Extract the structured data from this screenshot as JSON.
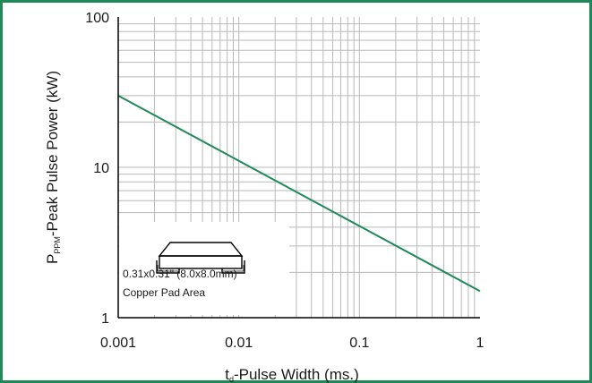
{
  "colors": {
    "frame": "#1e8a5a",
    "series": "#1e8a5a",
    "grid": "#b9b9b9",
    "axis": "#000000"
  },
  "chart_data": {
    "type": "line",
    "xscale": "log",
    "yscale": "log",
    "xlim": [
      0.001,
      1
    ],
    "ylim": [
      1,
      100
    ],
    "x_ticks": [
      "0.001",
      "0.01",
      "0.1",
      "1"
    ],
    "y_ticks": [
      "1",
      "10",
      "100"
    ],
    "grid": true,
    "xlabel": {
      "prefix": "t",
      "sub": "d",
      "suffix": "-Pulse Width (ms.)"
    },
    "ylabel": {
      "prefix": "P",
      "sub": "PPM",
      "suffix": "-Peak Pulse Power (kW)"
    },
    "series": [
      {
        "x": [
          0.001,
          1
        ],
        "y": [
          30,
          1.5
        ]
      }
    ],
    "annotations": {
      "line1": "0.31x0.31\" (8.0x8.0mm)",
      "line2": "Copper Pad Area",
      "icon": "smd-package-icon"
    }
  }
}
